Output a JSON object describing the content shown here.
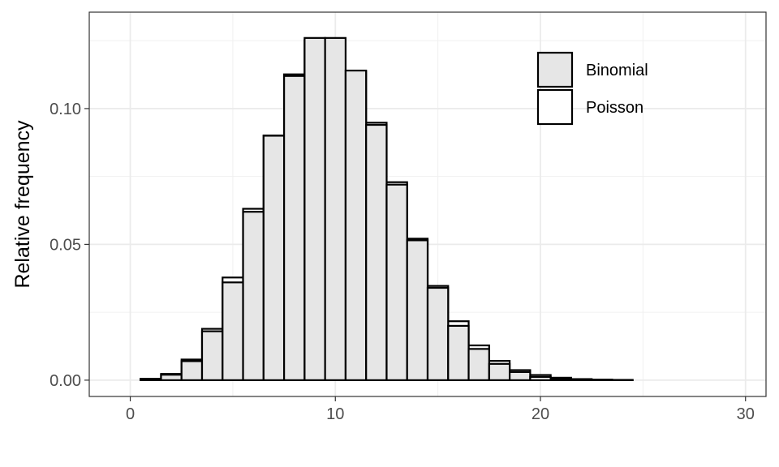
{
  "chart_data": {
    "type": "bar",
    "title": "",
    "xlabel": "",
    "ylabel": "Relative frequency",
    "xlim": [
      -2,
      31
    ],
    "ylim": [
      -0.006,
      0.1355
    ],
    "x_ticks": [
      0,
      10,
      20,
      30
    ],
    "x_tick_labels": [
      "0",
      "10",
      "20",
      "30"
    ],
    "y_ticks": [
      0.0,
      0.05,
      0.1
    ],
    "y_tick_labels": [
      "0.00",
      "0.05",
      "0.10"
    ],
    "grid": true,
    "legend_position": "top-right",
    "x": [
      0,
      1,
      2,
      3,
      4,
      5,
      6,
      7,
      8,
      9,
      10,
      11,
      12,
      13,
      14,
      15,
      16,
      17,
      18,
      19,
      20,
      21,
      22,
      23,
      24,
      25,
      26,
      27,
      28,
      29
    ],
    "series": [
      {
        "name": "Binomial",
        "fill": "#e6e6e6",
        "values": [
          0.0,
          0.0004,
          0.002,
          0.007,
          0.018,
          0.036,
          0.062,
          0.09,
          0.112,
          0.126,
          0.126,
          0.114,
          0.094,
          0.072,
          0.0515,
          0.034,
          0.02,
          0.0115,
          0.006,
          0.003,
          0.0012,
          0.0005,
          0.0002,
          0.0001,
          0.0,
          0.0,
          0.0,
          0.0,
          0.0,
          0.0
        ]
      },
      {
        "name": "Poisson",
        "fill": "#ffffff",
        "values": [
          0.0,
          0.0005,
          0.0023,
          0.0076,
          0.0189,
          0.0378,
          0.0631,
          0.0901,
          0.1126,
          0.1251,
          0.1251,
          0.1137,
          0.0948,
          0.0729,
          0.0521,
          0.0347,
          0.0217,
          0.0128,
          0.0071,
          0.0037,
          0.0019,
          0.0009,
          0.0004,
          0.0002,
          0.0001,
          0.0,
          0.0,
          0.0,
          0.0,
          0.0
        ]
      }
    ]
  }
}
